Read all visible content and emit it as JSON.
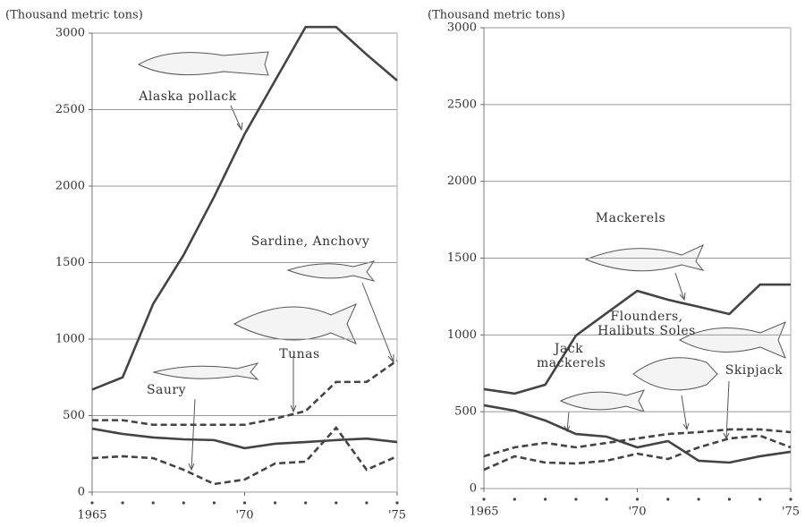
{
  "chart_data": [
    {
      "type": "line",
      "y_label": "(Thousand metric tons)",
      "x": [
        1965,
        1966,
        1967,
        1968,
        1969,
        1970,
        1971,
        1972,
        1973,
        1974,
        1975
      ],
      "xlim": [
        1965,
        1975
      ],
      "xticks": [
        1965,
        {
          "value": 1970,
          "label": "'70"
        },
        {
          "value": 1975,
          "label": "'75"
        }
      ],
      "ylim": [
        0,
        3000
      ],
      "yticks": [
        0,
        500,
        1000,
        1500,
        2000,
        2500,
        3000
      ],
      "grid": true,
      "series": [
        {
          "name": "Alaska pollack",
          "color": "#444444",
          "dash": false,
          "values": [
            670,
            750,
            1230,
            1550,
            1930,
            2340,
            2690,
            3040,
            3040,
            2860,
            2690
          ]
        },
        {
          "name": "Sardine, Anchovy",
          "color": "#444444",
          "dash": true,
          "values": [
            470,
            470,
            440,
            440,
            440,
            440,
            480,
            530,
            720,
            720,
            860
          ]
        },
        {
          "name": "Tunas",
          "color": "#444444",
          "dash": false,
          "values": [
            415,
            380,
            357,
            345,
            340,
            287,
            316,
            327,
            340,
            350,
            327
          ]
        },
        {
          "name": "Saury",
          "color": "#444444",
          "dash": true,
          "values": [
            222,
            234,
            222,
            146,
            53,
            82,
            187,
            199,
            421,
            146,
            234
          ]
        }
      ]
    },
    {
      "type": "line",
      "y_label": "(Thousand metric tons)",
      "x": [
        1965,
        1966,
        1967,
        1968,
        1969,
        1970,
        1971,
        1972,
        1973,
        1974,
        1975
      ],
      "xlim": [
        1965,
        1975
      ],
      "xticks": [
        1965,
        {
          "value": 1970,
          "label": "'70"
        },
        {
          "value": 1975,
          "label": "'75"
        }
      ],
      "ylim": [
        0,
        3000
      ],
      "yticks": [
        0,
        500,
        1000,
        1500,
        2000,
        2500,
        3000
      ],
      "grid": true,
      "series": [
        {
          "name": "Mackerels",
          "color": "#444444",
          "dash": false,
          "values": [
            647,
            618,
            676,
            996,
            1142,
            1287,
            1229,
            1183,
            1136,
            1328,
            1328
          ]
        },
        {
          "name": "Jack mackerels",
          "color": "#444444",
          "dash": false,
          "values": [
            542,
            507,
            443,
            355,
            338,
            268,
            309,
            181,
            169,
            210,
            239
          ]
        },
        {
          "name": "Flounders, Halibuts Soles",
          "color": "#444444",
          "dash": true,
          "values": [
            210,
            268,
            297,
            268,
            297,
            326,
            355,
            367,
            385,
            385,
            367
          ]
        },
        {
          "name": "Skipjack",
          "color": "#444444",
          "dash": true,
          "values": [
            122,
            210,
            169,
            163,
            181,
            227,
            192,
            268,
            326,
            344,
            268
          ]
        }
      ]
    }
  ]
}
